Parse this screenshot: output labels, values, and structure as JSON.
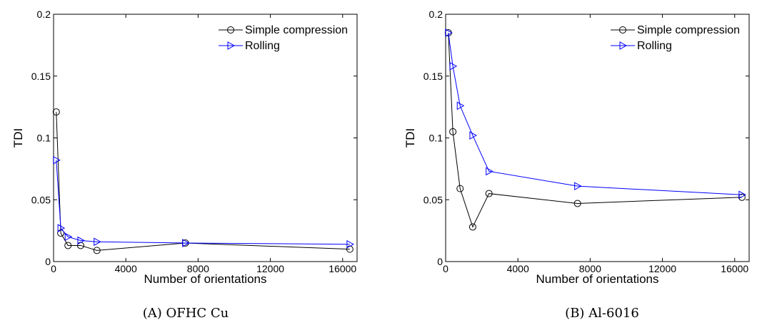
{
  "chart_data": [
    {
      "type": "line",
      "caption": "(A) OFHC Cu",
      "xlabel": "Number of orientations",
      "ylabel": "TDI",
      "xlim": [
        0,
        16800
      ],
      "ylim": [
        0,
        0.2
      ],
      "xticks": [
        0,
        4000,
        8000,
        12000,
        16000
      ],
      "yticks": [
        0,
        0.05,
        0.1,
        0.15,
        0.2
      ],
      "xtick_labels": [
        "0",
        "4000",
        "8000",
        "12000",
        "16000"
      ],
      "ytick_labels": [
        "0",
        "0.05",
        "0.1",
        "0.15",
        "0.2"
      ],
      "legend_position": "top-right",
      "grid": false,
      "series": [
        {
          "name": "Simple compression",
          "color": "#000000",
          "marker": "circle",
          "x": [
            150,
            400,
            800,
            1500,
            2400,
            7300,
            16400
          ],
          "y": [
            0.121,
            0.023,
            0.013,
            0.013,
            0.009,
            0.015,
            0.01
          ]
        },
        {
          "name": "Rolling",
          "color": "#0000ff",
          "marker": "triangle-right",
          "x": [
            150,
            400,
            800,
            1500,
            2400,
            7300,
            16400
          ],
          "y": [
            0.082,
            0.027,
            0.02,
            0.017,
            0.016,
            0.015,
            0.014
          ]
        }
      ]
    },
    {
      "type": "line",
      "caption": "(B) Al-6016",
      "xlabel": "Number of orientations",
      "ylabel": "TDI",
      "xlim": [
        0,
        16800
      ],
      "ylim": [
        0,
        0.2
      ],
      "xticks": [
        0,
        4000,
        8000,
        12000,
        16000
      ],
      "yticks": [
        0,
        0.05,
        0.1,
        0.15,
        0.2
      ],
      "xtick_labels": [
        "0",
        "4000",
        "8000",
        "12000",
        "16000"
      ],
      "ytick_labels": [
        "0",
        "0.05",
        "0.1",
        "0.15",
        "0.2"
      ],
      "legend_position": "top-right",
      "grid": false,
      "series": [
        {
          "name": "Simple compression",
          "color": "#000000",
          "marker": "circle",
          "x": [
            150,
            400,
            800,
            1500,
            2400,
            7300,
            16400
          ],
          "y": [
            0.185,
            0.105,
            0.059,
            0.028,
            0.055,
            0.047,
            0.052
          ]
        },
        {
          "name": "Rolling",
          "color": "#0000ff",
          "marker": "triangle-right",
          "x": [
            150,
            400,
            800,
            1500,
            2400,
            7300,
            16400
          ],
          "y": [
            0.185,
            0.158,
            0.126,
            0.102,
            0.073,
            0.061,
            0.054
          ]
        }
      ]
    }
  ]
}
